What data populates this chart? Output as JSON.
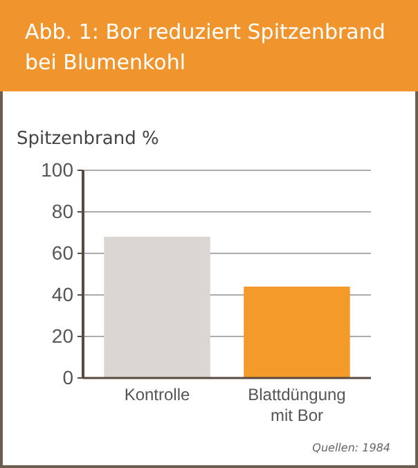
{
  "chart_data": {
    "type": "bar",
    "title": "Abb. 1: Bor reduziert Spitzenbrand bei Blumenkohl",
    "ylabel": "Spitzenbrand %",
    "categories": [
      "Kontrolle",
      "Blattdüngung mit Bor"
    ],
    "values": [
      68,
      44
    ],
    "colors": [
      "#dcd6d2",
      "#f39a2b"
    ],
    "ylim": [
      0,
      100
    ],
    "yticks": [
      0,
      20,
      40,
      60,
      80,
      100
    ],
    "grid": "y",
    "annotations": [
      "Quellen: 1984"
    ]
  }
}
